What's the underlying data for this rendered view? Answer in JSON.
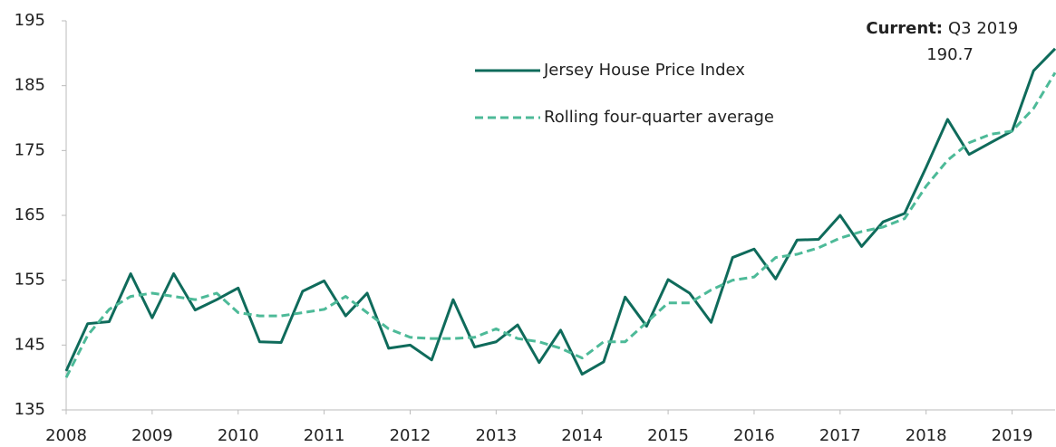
{
  "chart_data": {
    "type": "line",
    "categories": [
      "2008",
      null,
      null,
      null,
      "2009",
      null,
      null,
      null,
      "2010",
      null,
      null,
      null,
      "2011",
      null,
      null,
      null,
      "2012",
      null,
      null,
      null,
      "2013",
      null,
      null,
      null,
      "2014",
      null,
      null,
      null,
      "2015",
      null,
      null,
      null,
      "2016",
      null,
      null,
      null,
      "2017",
      null,
      null,
      null,
      "2018",
      null,
      null,
      null,
      "2019",
      null,
      null
    ],
    "series": [
      {
        "name": "Jersey House Price Index",
        "color": "#0f6b5b",
        "dashed": false,
        "values": [
          141,
          148.3,
          148.6,
          156,
          149.2,
          156,
          150.4,
          152,
          153.8,
          145.5,
          145.4,
          153.3,
          154.9,
          149.5,
          153,
          144.5,
          145,
          142.7,
          152,
          144.7,
          145.5,
          148.1,
          142.3,
          147.3,
          140.5,
          142.4,
          152.4,
          147.9,
          155.1,
          153,
          148.5,
          158.5,
          159.8,
          155.2,
          161.2,
          161.3,
          165,
          160.2,
          164,
          165.3,
          172.4,
          179.8,
          174.4,
          176.2,
          178,
          187.3,
          190.7
        ]
      },
      {
        "name": "Rolling four-quarter average",
        "color": "#4dba98",
        "dashed": true,
        "values": [
          140,
          146.5,
          150.5,
          152.5,
          153,
          152.5,
          152,
          153,
          150,
          149.5,
          149.5,
          150,
          150.5,
          152.5,
          150,
          147.5,
          146.2,
          146,
          146,
          146.2,
          147.5,
          146,
          145.5,
          144.5,
          143,
          145.5,
          145.5,
          148.5,
          151.5,
          151.5,
          153.5,
          155,
          155.5,
          158.5,
          159,
          160,
          161.5,
          162.5,
          163.2,
          164.5,
          169.5,
          173.5,
          176.2,
          177.5,
          178,
          181.5,
          187
        ]
      }
    ],
    "ylim": [
      135,
      195
    ],
    "yticks": [
      135,
      145,
      155,
      165,
      175,
      185,
      195
    ],
    "annotation": {
      "label": "Current:",
      "period": "Q3 2019",
      "value": 190.7
    }
  }
}
